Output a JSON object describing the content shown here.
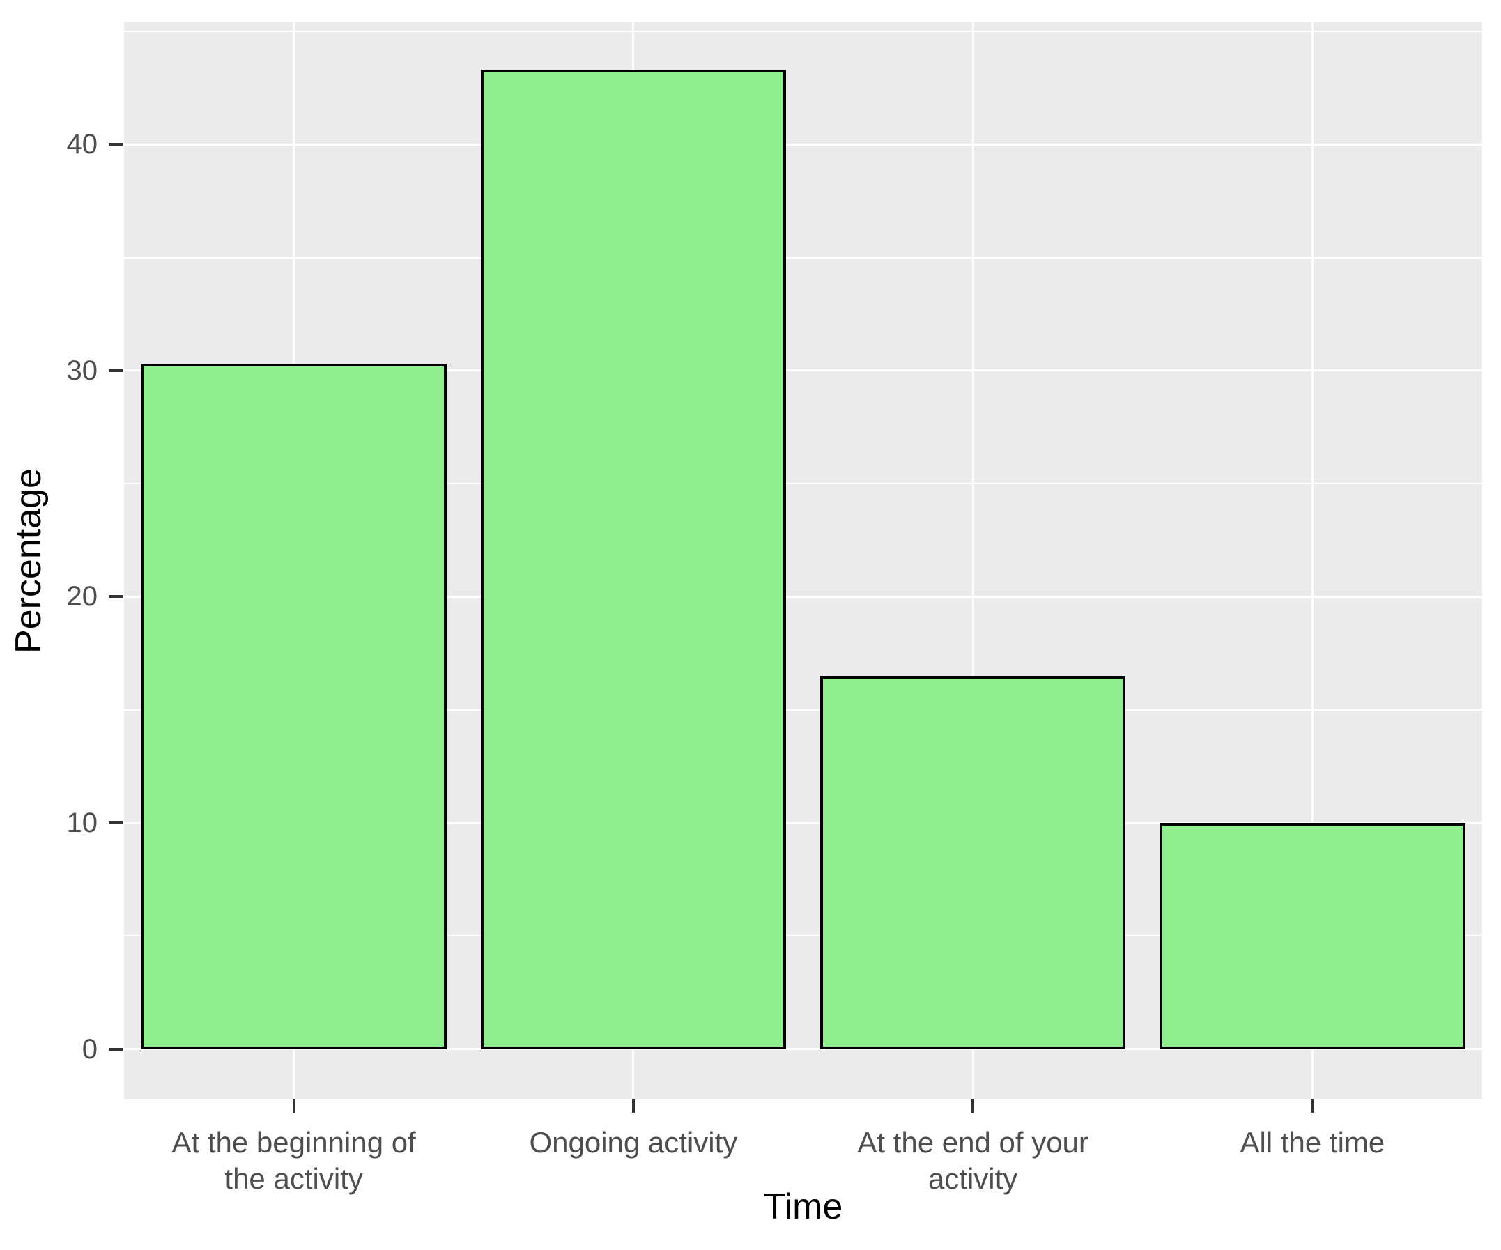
{
  "chart_data": {
    "type": "bar",
    "title": "",
    "xlabel": "Time",
    "ylabel": "Percentage",
    "categories": [
      "At the beginning of\nthe activity",
      "Ongoing activity",
      "At the end of your\nactivity",
      "All the time"
    ],
    "values": [
      30.3,
      43.3,
      16.5,
      10.0
    ],
    "ylim": [
      -2.2,
      45.4
    ],
    "yticks_major": [
      0,
      10,
      20,
      30,
      40
    ],
    "yticks_minor": [
      5,
      15,
      25,
      35,
      45
    ],
    "grid": true,
    "legend_position": "none",
    "bar_width_fraction": 0.9,
    "colors": {
      "bar_fill": "#90EE90",
      "bar_stroke": "#000000",
      "panel_background": "#EBEBEB",
      "gridline": "#FFFFFF",
      "tick_mark": "#333333",
      "tick_label": "#4D4D4D",
      "axis_title": "#000000",
      "page_background": "#FFFFFF"
    }
  }
}
